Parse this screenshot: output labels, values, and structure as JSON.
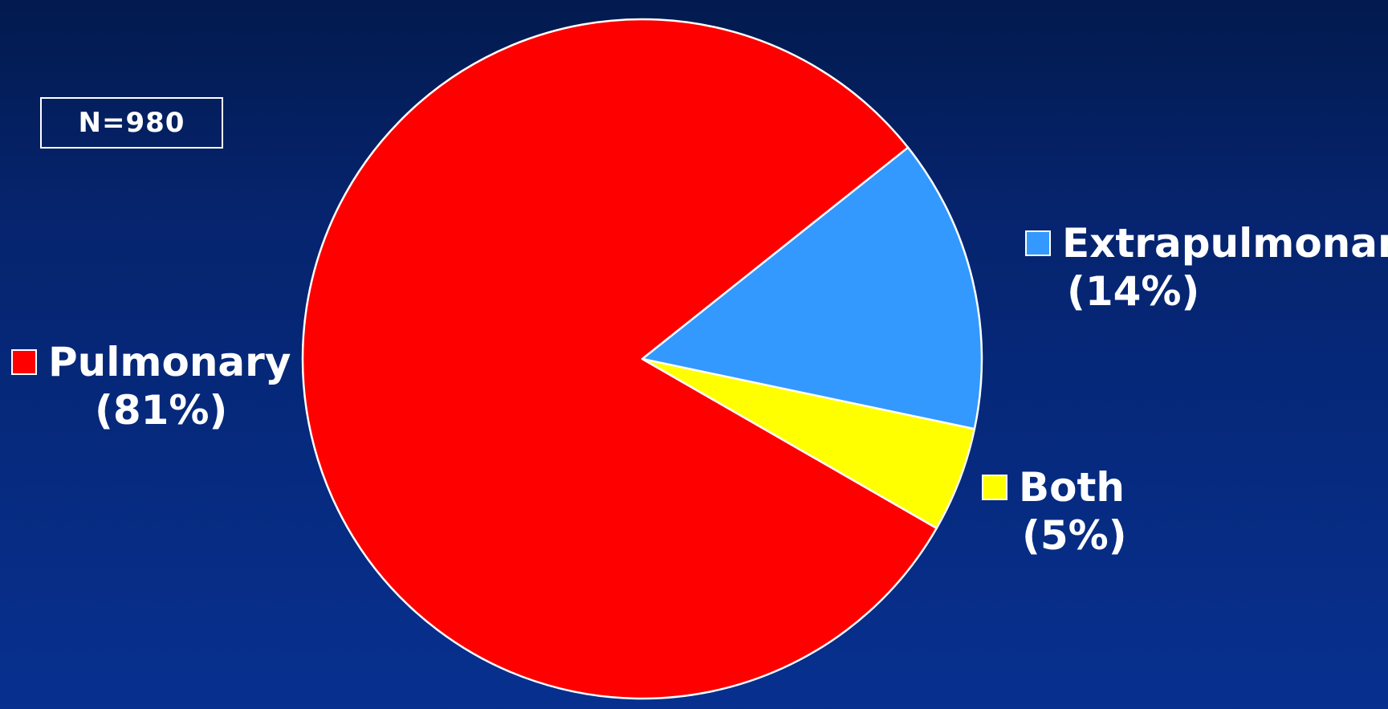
{
  "chart_data": {
    "type": "pie",
    "annotation": "N=980",
    "slices": [
      {
        "label": "Pulmonary",
        "pct_label": "(81%)",
        "value": 81,
        "color": "#ff0000"
      },
      {
        "label": "Extrapulmonary",
        "pct_label": "(14%)",
        "value": 14,
        "color": "#3399ff"
      },
      {
        "label": "Both",
        "pct_label": "(5%)",
        "value": 5,
        "color": "#ffff00"
      }
    ],
    "edge_color": "#ffffff"
  }
}
